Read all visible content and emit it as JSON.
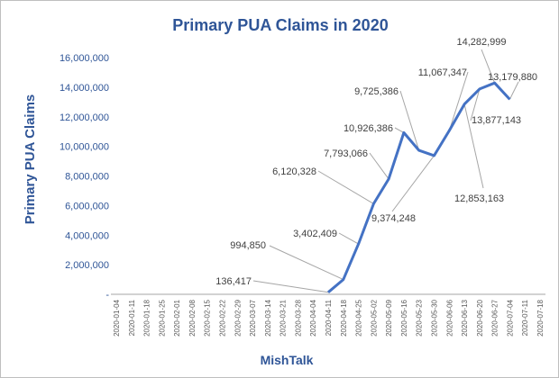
{
  "chart_data": {
    "type": "line",
    "title": "Primary PUA Claims in 2020",
    "ylabel": "Primary PUA  Claims",
    "xlabel": "MishTalk",
    "ylim": [
      0,
      16000000
    ],
    "y_ticks": [
      {
        "value": 0,
        "label": "-"
      },
      {
        "value": 2000000,
        "label": "2,000,000"
      },
      {
        "value": 4000000,
        "label": "4,000,000"
      },
      {
        "value": 6000000,
        "label": "6,000,000"
      },
      {
        "value": 8000000,
        "label": "8,000,000"
      },
      {
        "value": 10000000,
        "label": "10,000,000"
      },
      {
        "value": 12000000,
        "label": "12,000,000"
      },
      {
        "value": 14000000,
        "label": "14,000,000"
      },
      {
        "value": 16000000,
        "label": "16,000,000"
      }
    ],
    "categories": [
      "2020-01-04",
      "2020-01-11",
      "2020-01-18",
      "2020-01-25",
      "2020-02-01",
      "2020-02-08",
      "2020-02-15",
      "2020-02-22",
      "2020-02-29",
      "2020-03-07",
      "2020-03-14",
      "2020-03-21",
      "2020-03-28",
      "2020-04-04",
      "2020-04-11",
      "2020-04-18",
      "2020-04-25",
      "2020-05-02",
      "2020-05-09",
      "2020-05-16",
      "2020-05-23",
      "2020-05-30",
      "2020-06-06",
      "2020-06-13",
      "2020-06-20",
      "2020-06-27",
      "2020-07-04",
      "2020-07-11",
      "2020-07-18"
    ],
    "series": [
      {
        "color": "#4472c4",
        "points": [
          {
            "x": "2020-04-11",
            "y": 136417,
            "label": "136,417"
          },
          {
            "x": "2020-04-18",
            "y": 994850,
            "label": "994,850"
          },
          {
            "x": "2020-04-25",
            "y": 3402409,
            "label": "3,402,409"
          },
          {
            "x": "2020-05-02",
            "y": 6120328,
            "label": "6,120,328"
          },
          {
            "x": "2020-05-09",
            "y": 7793066,
            "label": "7,793,066"
          },
          {
            "x": "2020-05-16",
            "y": 10926386,
            "label": "10,926,386"
          },
          {
            "x": "2020-05-23",
            "y": 9725386,
            "label": "9,725,386"
          },
          {
            "x": "2020-05-30",
            "y": 9374248,
            "label": "9,374,248"
          },
          {
            "x": "2020-06-06",
            "y": 11067347,
            "label": "11,067,347"
          },
          {
            "x": "2020-06-13",
            "y": 12853163,
            "label": "12,853,163"
          },
          {
            "x": "2020-06-20",
            "y": 13877143,
            "label": "13,877,143"
          },
          {
            "x": "2020-06-27",
            "y": 14282999,
            "label": "14,282,999"
          },
          {
            "x": "2020-07-04",
            "y": 13179880,
            "label": "13,179,880"
          }
        ]
      }
    ],
    "grid": false,
    "legend": "none"
  }
}
